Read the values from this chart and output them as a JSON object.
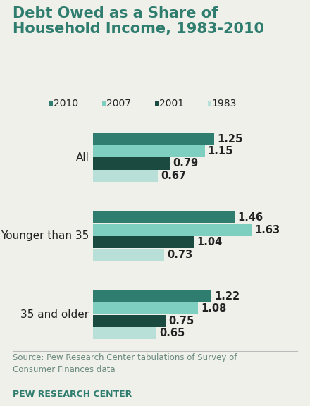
{
  "title": "Debt Owed as a Share of\nHousehold Income, 1983-2010",
  "groups": [
    "All",
    "Younger than 35",
    "35 and older"
  ],
  "years": [
    "2010",
    "2007",
    "2001",
    "1983"
  ],
  "values": {
    "All": [
      1.25,
      1.15,
      0.79,
      0.67
    ],
    "Younger than 35": [
      1.46,
      1.63,
      1.04,
      0.73
    ],
    "35 and older": [
      1.22,
      1.08,
      0.75,
      0.65
    ]
  },
  "colors": {
    "2010": "#2e7d6e",
    "2007": "#7ecfc0",
    "2001": "#1a4a40",
    "1983": "#b8e0d8"
  },
  "source_text": "Source: Pew Research Center tabulations of Survey of\nConsumer Finances data",
  "footer_text": "PEW RESEARCH CENTER",
  "background_color": "#f0f0eb",
  "title_color": "#2e7d6e",
  "label_color": "#222222",
  "source_color": "#6a8a7e",
  "footer_color": "#2e7d6e",
  "xlim_max": 1.85,
  "value_fontsize": 10.5,
  "label_fontsize": 11,
  "title_fontsize": 15,
  "legend_fontsize": 10
}
